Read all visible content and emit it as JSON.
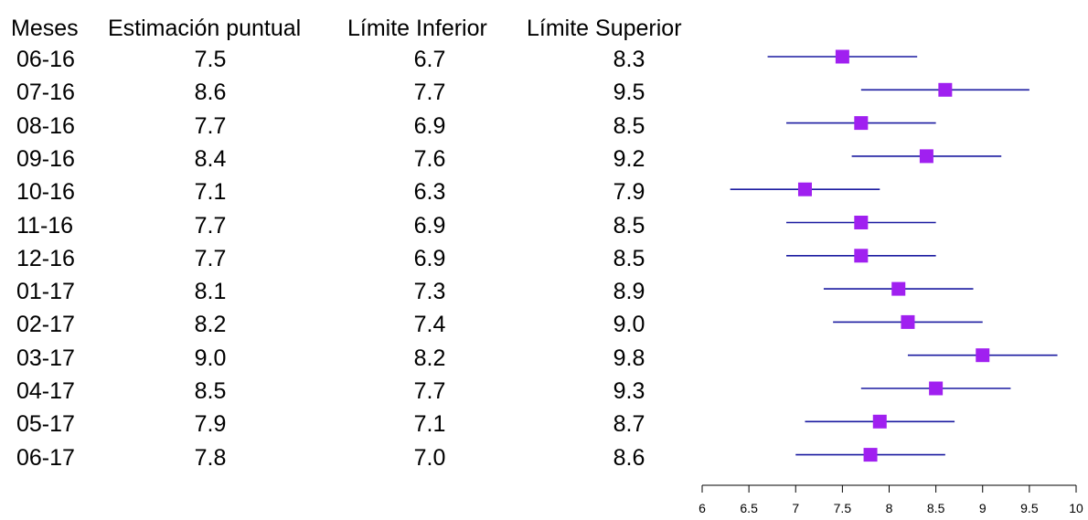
{
  "headers": {
    "months": "Meses",
    "point": "Estimación puntual",
    "lower": "Límite Inferior",
    "upper": "Límite Superior"
  },
  "rows": [
    {
      "month": "06-16",
      "point": "7.5",
      "lower": "6.7",
      "upper": "8.3"
    },
    {
      "month": "07-16",
      "point": "8.6",
      "lower": "7.7",
      "upper": "9.5"
    },
    {
      "month": "08-16",
      "point": "7.7",
      "lower": "6.9",
      "upper": "8.5"
    },
    {
      "month": "09-16",
      "point": "8.4",
      "lower": "7.6",
      "upper": "9.2"
    },
    {
      "month": "10-16",
      "point": "7.1",
      "lower": "6.3",
      "upper": "7.9"
    },
    {
      "month": "11-16",
      "point": "7.7",
      "lower": "6.9",
      "upper": "8.5"
    },
    {
      "month": "12-16",
      "point": "7.7",
      "lower": "6.9",
      "upper": "8.5"
    },
    {
      "month": "01-17",
      "point": "8.1",
      "lower": "7.3",
      "upper": "8.9"
    },
    {
      "month": "02-17",
      "point": "8.2",
      "lower": "7.4",
      "upper": "9.0"
    },
    {
      "month": "03-17",
      "point": "9.0",
      "lower": "8.2",
      "upper": "9.8"
    },
    {
      "month": "04-17",
      "point": "8.5",
      "lower": "7.7",
      "upper": "9.3"
    },
    {
      "month": "05-17",
      "point": "7.9",
      "lower": "7.1",
      "upper": "8.7"
    },
    {
      "month": "06-17",
      "point": "7.8",
      "lower": "7.0",
      "upper": "8.6"
    }
  ],
  "colors": {
    "interval": "#1a1aa0",
    "point": "#a020f0",
    "axis": "#000000"
  },
  "chart_data": {
    "type": "forest",
    "categories": [
      "06-16",
      "07-16",
      "08-16",
      "09-16",
      "10-16",
      "11-16",
      "12-16",
      "01-17",
      "02-17",
      "03-17",
      "04-17",
      "05-17",
      "06-17"
    ],
    "estimate": [
      7.5,
      8.6,
      7.7,
      8.4,
      7.1,
      7.7,
      7.7,
      8.1,
      8.2,
      9.0,
      8.5,
      7.9,
      7.8
    ],
    "lower": [
      6.7,
      7.7,
      6.9,
      7.6,
      6.3,
      6.9,
      6.9,
      7.3,
      7.4,
      8.2,
      7.7,
      7.1,
      7.0
    ],
    "upper": [
      8.3,
      9.5,
      8.5,
      9.2,
      7.9,
      8.5,
      8.5,
      8.9,
      9.0,
      9.8,
      9.3,
      8.7,
      8.6
    ],
    "xlim": [
      6,
      10
    ],
    "xticks": [
      "6",
      "6.5",
      "7",
      "7.5",
      "8",
      "8.5",
      "9",
      "9.5",
      "10"
    ],
    "grid": false,
    "legend": "none"
  }
}
